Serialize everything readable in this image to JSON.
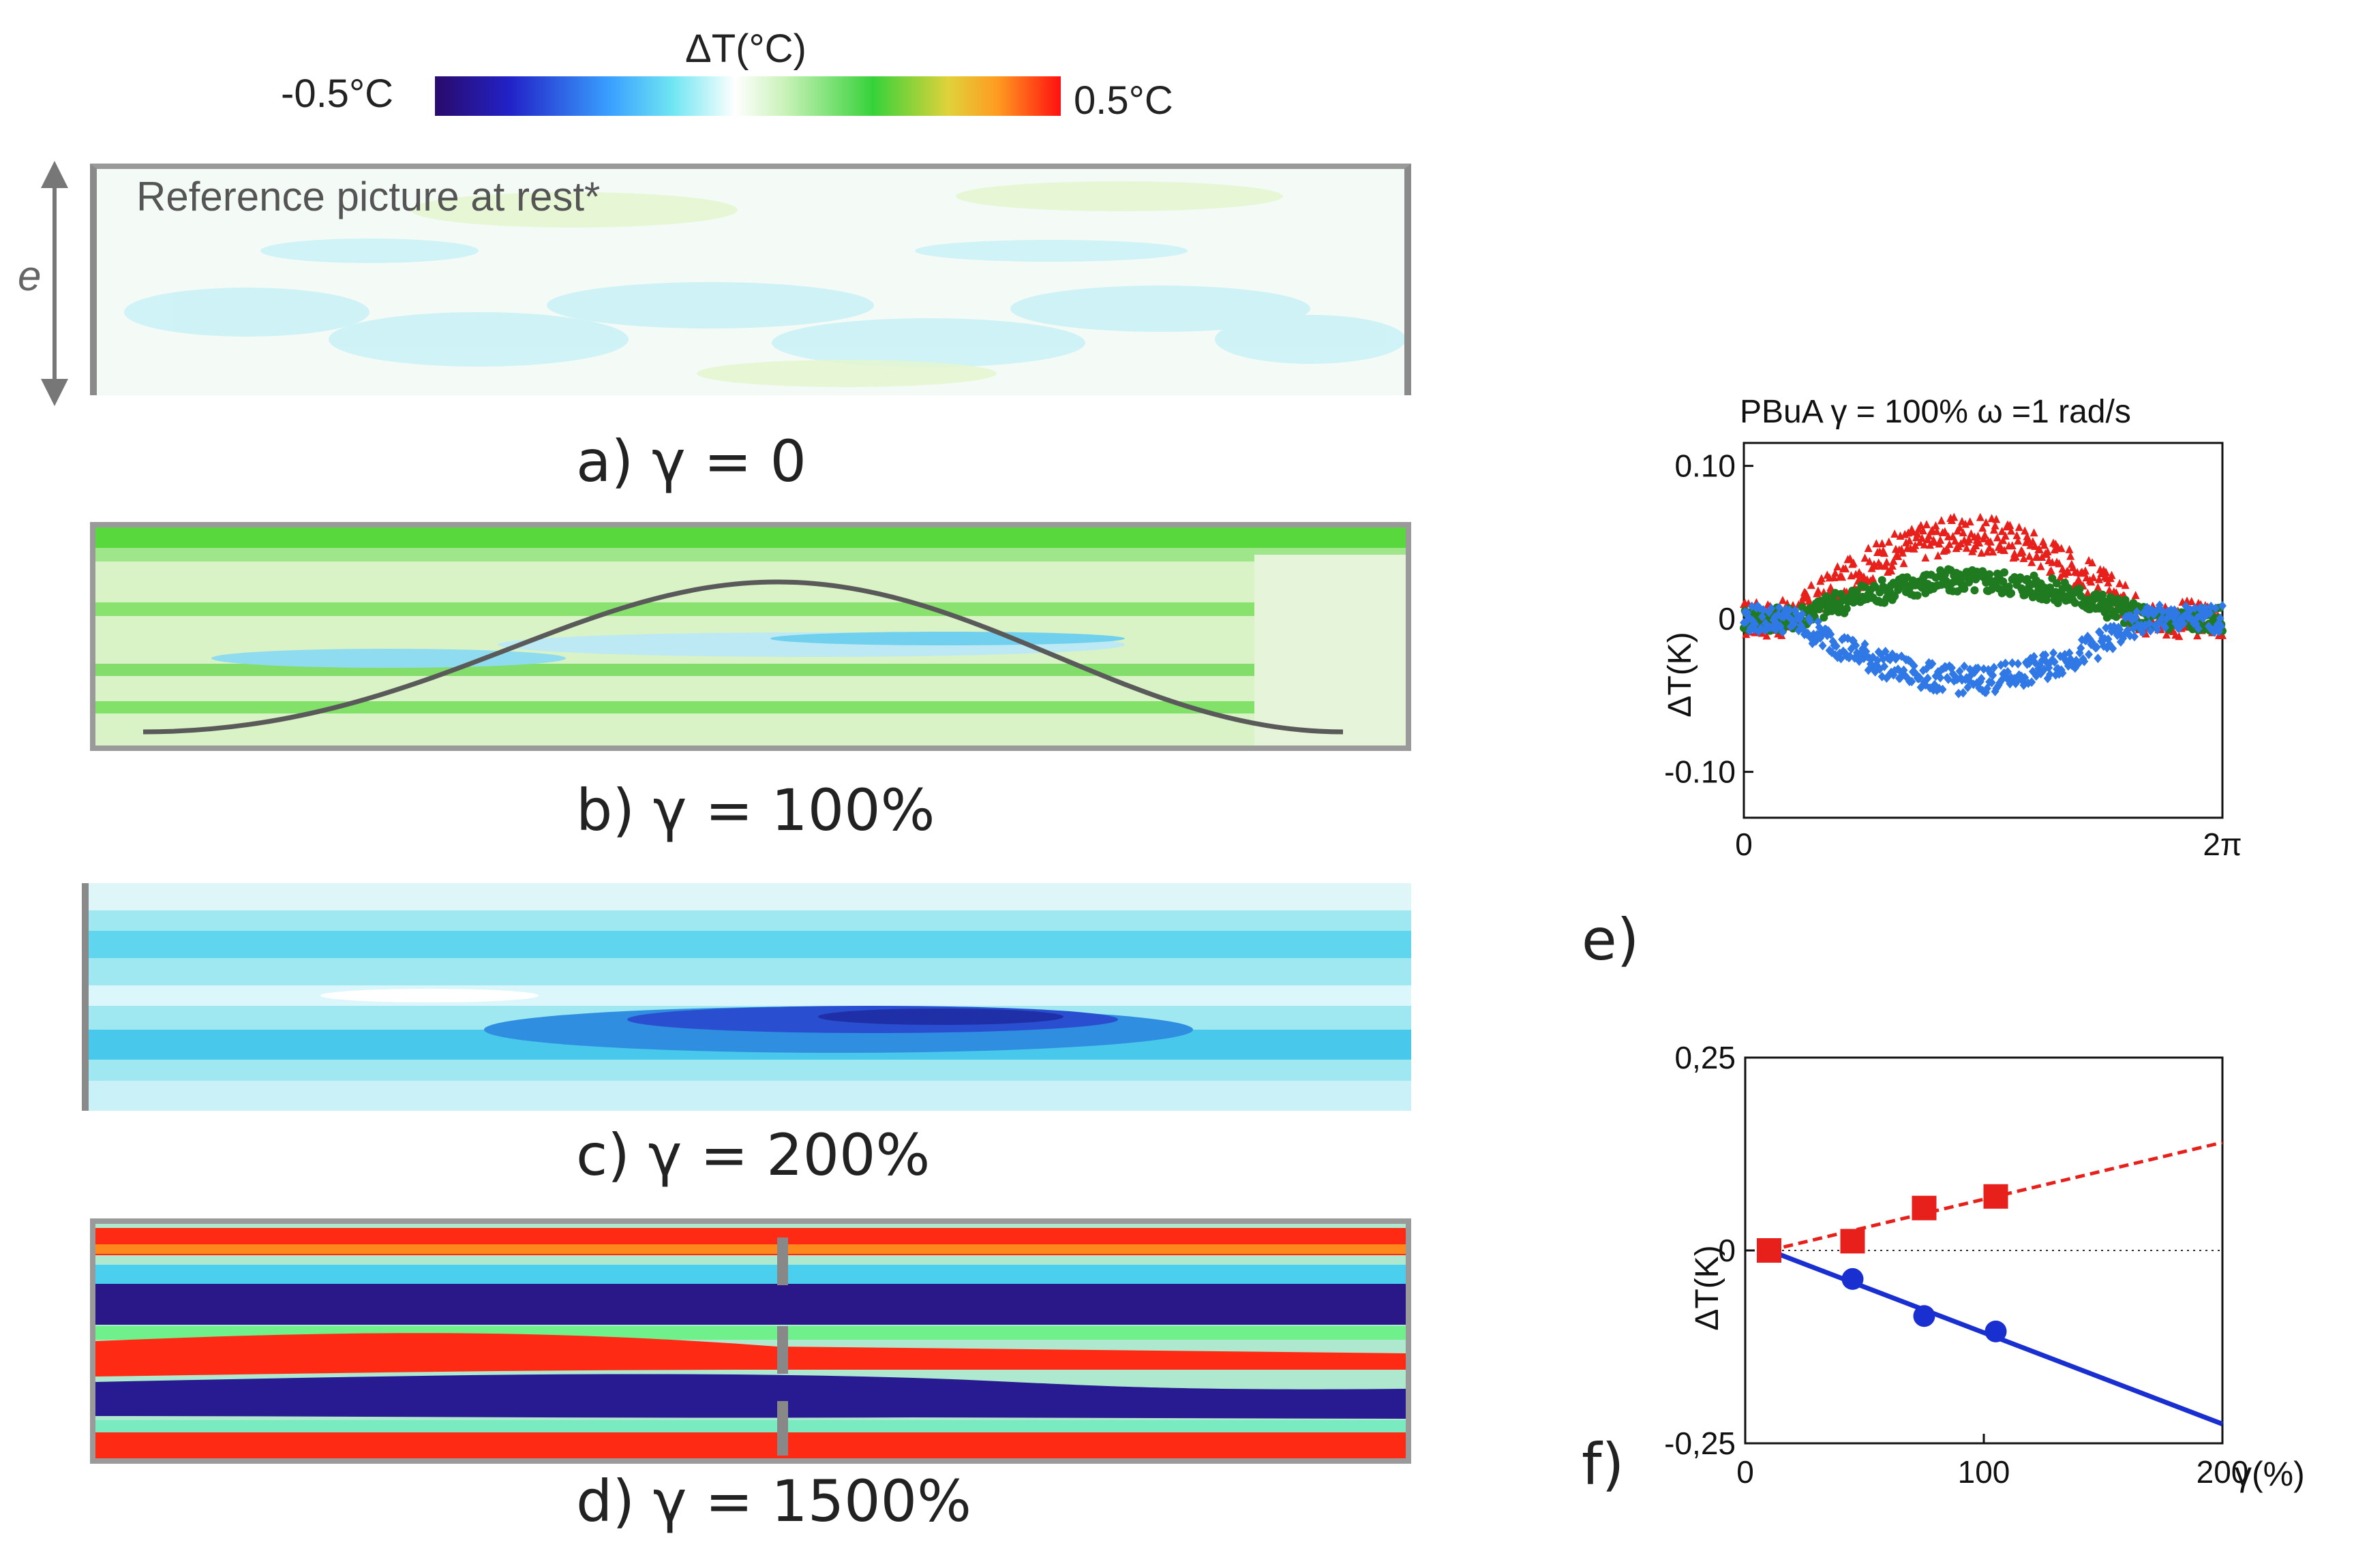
{
  "colorbar": {
    "title": "ΔT(°C)",
    "min_label": "-0.5°C",
    "max_label": "0.5°C",
    "stops": [
      "#2a0a6b",
      "#2222c8",
      "#3aa0ff",
      "#6fe6f2",
      "#ffffff",
      "#c9f2b8",
      "#36d23a",
      "#e0d23a",
      "#ff9a20",
      "#ff1010"
    ]
  },
  "panels": {
    "a": {
      "caption": "a) γ = 0",
      "annotation": "Reference picture at rest*",
      "thickness_label": "e"
    },
    "b": {
      "caption": "b) γ = 100%"
    },
    "c": {
      "caption": "c) γ = 200%"
    },
    "d": {
      "caption": "d)  γ = 1500%"
    }
  },
  "chart_data": [
    {
      "id": "e",
      "panel_label": "e)",
      "type": "scatter",
      "title": "PBuA γ = 100%   ω =1 rad/s",
      "xlabel": "",
      "ylabel": "ΔT(K)",
      "xlim": [
        0,
        6.2832
      ],
      "ylim": [
        -0.13,
        0.115
      ],
      "x_tick_labels": [
        "0",
        "2π"
      ],
      "y_tick_labels": [
        "0.10",
        "0",
        "-0.10"
      ],
      "y_tick_values": [
        0.1,
        0,
        -0.1
      ],
      "series": [
        {
          "name": "red",
          "color": "#e8201c",
          "marker": "triangle",
          "shape": "bump",
          "amplitude": 0.055,
          "noise": 0.012
        },
        {
          "name": "green",
          "color": "#1f7a20",
          "marker": "circle",
          "shape": "bump",
          "amplitude": 0.025,
          "noise": 0.008
        },
        {
          "name": "blue",
          "color": "#2f78e6",
          "marker": "diamond",
          "shape": "dip",
          "amplitude": -0.04,
          "noise": 0.009
        }
      ]
    },
    {
      "id": "f",
      "panel_label": "f)",
      "type": "scatter",
      "title": "",
      "xlabel": "γ(%)",
      "ylabel": "ΔT(K)",
      "xlim": [
        0,
        200
      ],
      "ylim": [
        -0.25,
        0.25
      ],
      "x_tick_labels": [
        "0",
        "100",
        "200"
      ],
      "x_tick_values": [
        0,
        100,
        200
      ],
      "y_tick_labels": [
        "0,25",
        "0",
        "-0,25"
      ],
      "y_tick_values": [
        0.25,
        0,
        -0.25
      ],
      "series": [
        {
          "name": "red squares",
          "color": "#e8201c",
          "marker": "square",
          "x": [
            10,
            45,
            75,
            105
          ],
          "y": [
            0.0,
            0.012,
            0.055,
            0.07
          ],
          "fit": {
            "x": [
              10,
              200
            ],
            "y": [
              0.0,
              0.14
            ],
            "style": "dashed"
          }
        },
        {
          "name": "blue circles",
          "color": "#1a2fd0",
          "marker": "circle",
          "x": [
            45,
            75,
            105
          ],
          "y": [
            -0.037,
            -0.085,
            -0.105
          ],
          "fit": {
            "x": [
              10,
              200
            ],
            "y": [
              0.0,
              -0.225
            ],
            "style": "solid"
          }
        }
      ],
      "zero_line": true
    }
  ]
}
